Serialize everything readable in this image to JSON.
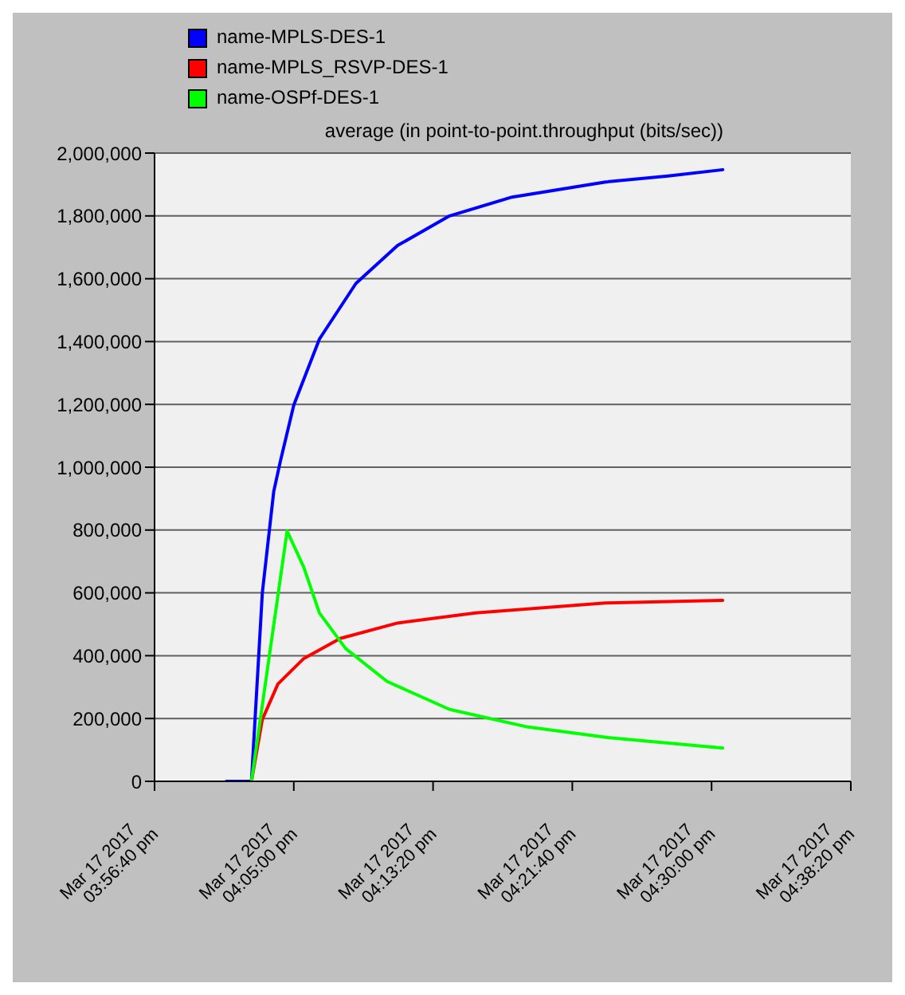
{
  "chart_data": {
    "type": "line",
    "title": "average (in point-to-point.throughput (bits/sec))",
    "xlim": [
      "2017-03-17T15:56:40",
      "2017-03-17T16:38:20"
    ],
    "xticks": [
      {
        "value": "2017-03-17T15:56:40",
        "label": "Mar 17 2017\n03:56:40 pm"
      },
      {
        "value": "2017-03-17T16:05:00",
        "label": "Mar 17 2017\n04:05:00 pm"
      },
      {
        "value": "2017-03-17T16:13:20",
        "label": "Mar 17 2017\n04:13:20 pm"
      },
      {
        "value": "2017-03-17T16:21:40",
        "label": "Mar 17 2017\n04:21:40 pm"
      },
      {
        "value": "2017-03-17T16:30:00",
        "label": "Mar 17 2017\n04:30:00 pm"
      },
      {
        "value": "2017-03-17T16:38:20",
        "label": "Mar 17 2017\n04:38:20 pm"
      }
    ],
    "ylim": [
      0,
      2000000
    ],
    "yticks": [
      0,
      {
        "value": 200000,
        "label": "200,000"
      },
      {
        "value": 400000,
        "label": "400,000"
      },
      {
        "value": 600000,
        "label": "600,000"
      },
      {
        "value": 800000,
        "label": "800,000"
      },
      {
        "value": 1000000,
        "label": "1,000,000"
      },
      {
        "value": 1200000,
        "label": "1,200,000"
      },
      {
        "value": 1400000,
        "label": "1,400,000"
      },
      {
        "value": 1600000,
        "label": "1,600,000"
      },
      {
        "value": 1800000,
        "label": "1,800,000"
      },
      {
        "value": 2000000,
        "label": "2,000,000"
      }
    ],
    "grid": "y",
    "legend": "top left",
    "marker": "none",
    "line_style": "solid",
    "series": [
      {
        "name": "name-MPLS-DES-1",
        "color": "#0000ff",
        "x": [
          "2017-03-17T16:00:58",
          "2017-03-17T16:02:28",
          "2017-03-17T16:03:07",
          "2017-03-17T16:03:48",
          "2017-03-17T16:04:12",
          "2017-03-17T16:05:00",
          "2017-03-17T16:06:32",
          "2017-03-17T16:08:43",
          "2017-03-17T16:11:13",
          "2017-03-17T16:14:19",
          "2017-03-17T16:18:04",
          "2017-03-17T16:23:40",
          "2017-03-17T16:27:24",
          "2017-03-17T16:30:40"
        ],
        "values": [
          0,
          0,
          600000,
          923000,
          1020000,
          1198000,
          1408000,
          1585000,
          1706000,
          1800000,
          1860000,
          1908000,
          1927000,
          1947000
        ]
      },
      {
        "name": "name-MPLS_RSVP-DES-1",
        "color": "#ff0000",
        "x": [
          "2017-03-17T16:02:28",
          "2017-03-17T16:03:07",
          "2017-03-17T16:04:03",
          "2017-03-17T16:05:36",
          "2017-03-17T16:07:47",
          "2017-03-17T16:11:13",
          "2017-03-17T16:15:53",
          "2017-03-17T16:23:40",
          "2017-03-17T16:30:40"
        ],
        "values": [
          0,
          197000,
          310000,
          391000,
          455000,
          504000,
          536000,
          568000,
          576000
        ]
      },
      {
        "name": "name-OSPf-DES-1",
        "color": "#00ff00",
        "x": [
          "2017-03-17T16:02:28",
          "2017-03-17T16:04:36",
          "2017-03-17T16:05:36",
          "2017-03-17T16:06:32",
          "2017-03-17T16:08:06",
          "2017-03-17T16:10:35",
          "2017-03-17T16:14:19",
          "2017-03-17T16:19:00",
          "2017-03-17T16:23:40",
          "2017-03-17T16:30:40"
        ],
        "values": [
          0,
          797000,
          681000,
          536000,
          423000,
          318000,
          229000,
          173000,
          140000,
          106000
        ]
      }
    ]
  }
}
